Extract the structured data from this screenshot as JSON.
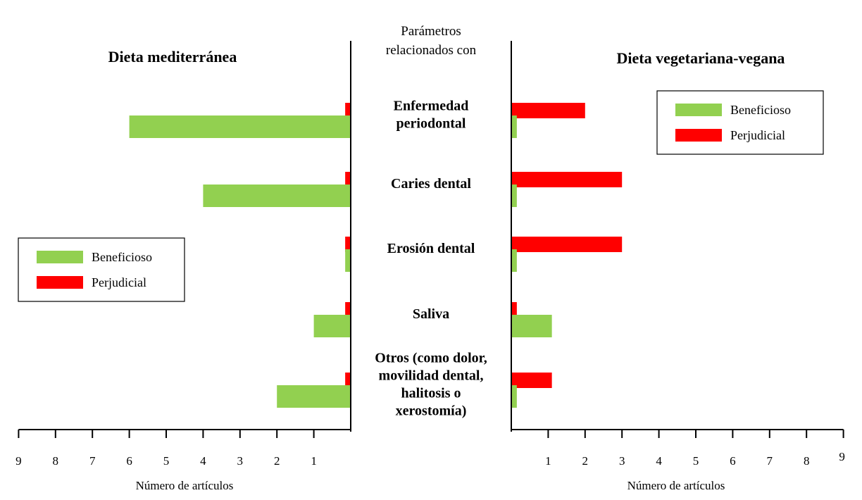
{
  "chart_data": {
    "type": "bar",
    "center_heading": [
      "Parámetros",
      "relacionados con"
    ],
    "categories": [
      [
        "Enfermedad",
        "periodontal"
      ],
      [
        "Caries dental"
      ],
      [
        "Erosión dental"
      ],
      [
        "Saliva"
      ],
      [
        "Otros (como dolor,",
        "movilidad dental,",
        "halitosis o",
        "xerostomía)"
      ]
    ],
    "xlim": [
      0,
      9
    ],
    "ticks": [
      1,
      2,
      3,
      4,
      5,
      6,
      7,
      8,
      9
    ],
    "colors": {
      "Beneficioso": "#92d050",
      "Perjudicial": "#ff0000"
    },
    "panels": [
      {
        "id": "mediterranean",
        "title": "Dieta mediterránea",
        "xlabel": "Número de artículos",
        "direction": "left",
        "legend": "left",
        "series": [
          {
            "name": "Perjudicial",
            "values": [
              0.15,
              0.15,
              0.15,
              0.15,
              0.15
            ]
          },
          {
            "name": "Beneficioso",
            "values": [
              6,
              4,
              0.15,
              1,
              2
            ]
          }
        ]
      },
      {
        "id": "vegetarian",
        "title": "Dieta vegetariana-vegana",
        "xlabel": "Número de artículos",
        "direction": "right",
        "legend": "top-right",
        "series": [
          {
            "name": "Perjudicial",
            "values": [
              2,
              3,
              3,
              0.15,
              1.1
            ]
          },
          {
            "name": "Beneficioso",
            "values": [
              0.15,
              0.15,
              0.15,
              1.1,
              0.15
            ]
          }
        ]
      }
    ]
  }
}
